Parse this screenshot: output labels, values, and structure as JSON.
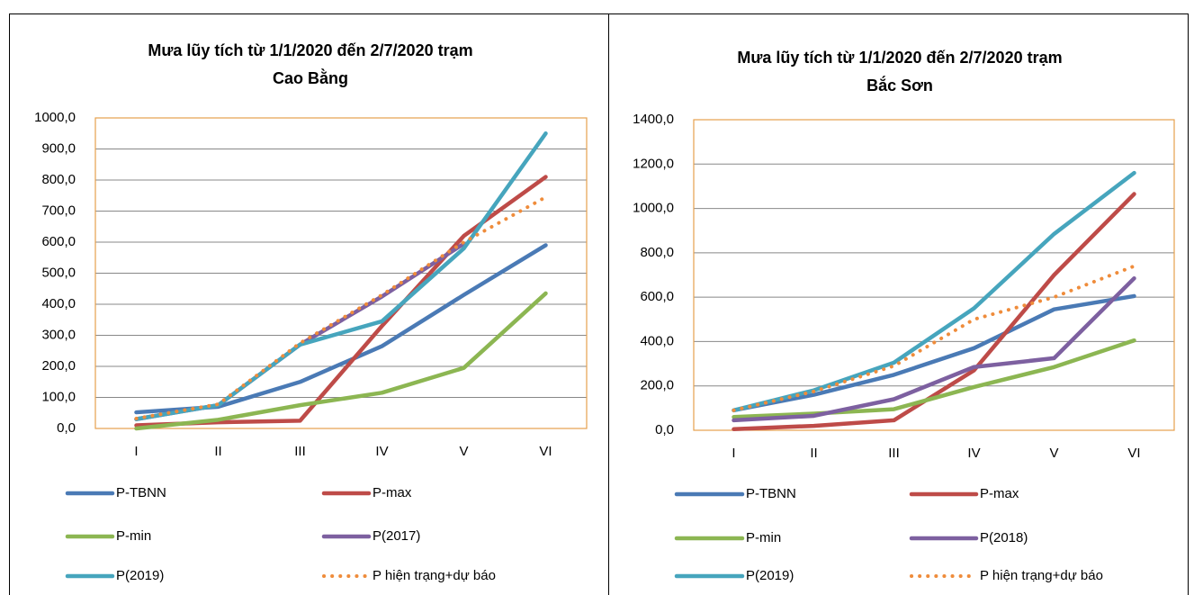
{
  "chart_data": [
    {
      "type": "line",
      "title": [
        "Mưa lũy tích từ 1/1/2020 đến 2/7/2020 trạm",
        "Cao Bằng"
      ],
      "categories": [
        "I",
        "II",
        "III",
        "IV",
        "V",
        "VI"
      ],
      "ylim": [
        0,
        1000
      ],
      "yticks": [
        {
          "value": 0,
          "label": "0,0"
        },
        {
          "value": 100,
          "label": "100,0"
        },
        {
          "value": 200,
          "label": "200,0"
        },
        {
          "value": 300,
          "label": "300,0"
        },
        {
          "value": 400,
          "label": "400,0"
        },
        {
          "value": 500,
          "label": "500,0"
        },
        {
          "value": 600,
          "label": "600,0"
        },
        {
          "value": 700,
          "label": "700,0"
        },
        {
          "value": 800,
          "label": "800,0"
        },
        {
          "value": 900,
          "label": "900,0"
        },
        {
          "value": 1000,
          "label": "1000,0"
        }
      ],
      "grid": true,
      "series": [
        {
          "name": "P-TBNN",
          "color": "#4a7ab5",
          "values": [
            52,
            70,
            150,
            265,
            430,
            590
          ]
        },
        {
          "name": "P-max",
          "color": "#be4b48",
          "values": [
            10,
            20,
            25,
            330,
            620,
            810
          ]
        },
        {
          "name": "P-min",
          "color": "#8cb652",
          "values": [
            0,
            28,
            75,
            115,
            195,
            435
          ]
        },
        {
          "name": "P(2017)",
          "color": "#7d60a0",
          "values": [
            30,
            75,
            270,
            425,
            595,
            null
          ]
        },
        {
          "name": "P(2019)",
          "color": "#46a5bd",
          "values": [
            30,
            75,
            270,
            345,
            580,
            950
          ]
        },
        {
          "name": "P hiện trạng+dự báo",
          "color": "#ef8c3b",
          "style": "dotted",
          "values": [
            32,
            78,
            275,
            430,
            600,
            745
          ]
        }
      ]
    },
    {
      "type": "line",
      "title": [
        "Mưa lũy tích từ 1/1/2020 đến 2/7/2020 trạm",
        "Bắc Sơn"
      ],
      "categories": [
        "I",
        "II",
        "III",
        "IV",
        "V",
        "VI"
      ],
      "ylim": [
        0,
        1400
      ],
      "yticks": [
        {
          "value": 0,
          "label": "0,0"
        },
        {
          "value": 200,
          "label": "200,0"
        },
        {
          "value": 400,
          "label": "400,0"
        },
        {
          "value": 600,
          "label": "600,0"
        },
        {
          "value": 800,
          "label": "800,0"
        },
        {
          "value": 1000,
          "label": "1000,0"
        },
        {
          "value": 1200,
          "label": "1200,0"
        },
        {
          "value": 1400,
          "label": "1400,0"
        }
      ],
      "grid": true,
      "series": [
        {
          "name": "P-TBNN",
          "color": "#4a7ab5",
          "values": [
            90,
            160,
            250,
            370,
            545,
            605
          ]
        },
        {
          "name": "P-max",
          "color": "#be4b48",
          "values": [
            5,
            20,
            45,
            270,
            700,
            1065
          ]
        },
        {
          "name": "P-min",
          "color": "#8cb652",
          "values": [
            60,
            75,
            95,
            195,
            285,
            405
          ]
        },
        {
          "name": "P(2018)",
          "color": "#7d60a0",
          "values": [
            45,
            65,
            140,
            285,
            325,
            685
          ]
        },
        {
          "name": "P(2019)",
          "color": "#46a5bd",
          "values": [
            90,
            180,
            305,
            550,
            885,
            1160
          ]
        },
        {
          "name": "P hiện trạng+dự báo",
          "color": "#ef8c3b",
          "style": "dotted",
          "values": [
            90,
            175,
            290,
            500,
            600,
            740
          ]
        }
      ]
    }
  ]
}
